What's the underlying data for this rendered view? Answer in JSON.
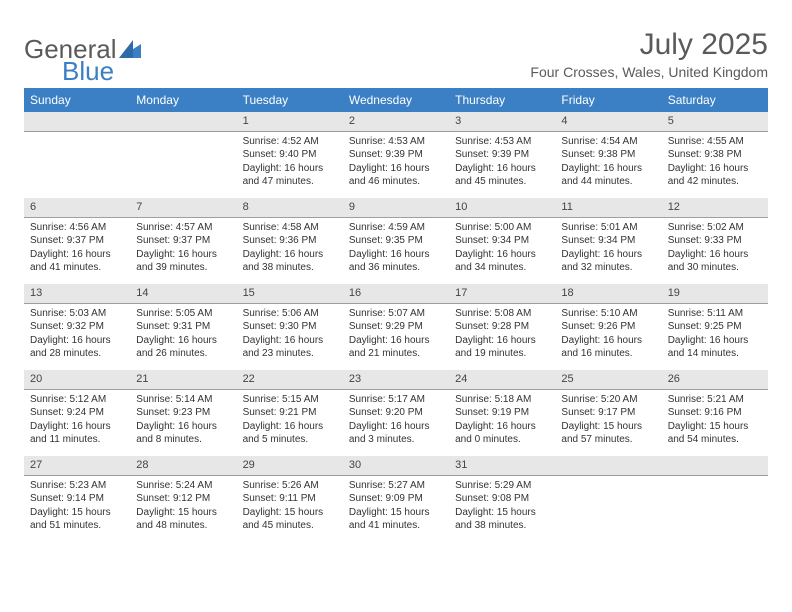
{
  "logo": {
    "text1": "General",
    "text2": "Blue"
  },
  "title": "July 2025",
  "location": "Four Crosses, Wales, United Kingdom",
  "colors": {
    "header_bg": "#3b7fc4",
    "header_text": "#ffffff",
    "daynum_bg": "#e7e7e7",
    "daynum_border": "#9aa0a6",
    "body_text": "#333333",
    "title_text": "#5a5a5a"
  },
  "weekdays": [
    "Sunday",
    "Monday",
    "Tuesday",
    "Wednesday",
    "Thursday",
    "Friday",
    "Saturday"
  ],
  "weeks": [
    [
      {
        "n": "",
        "sr": "",
        "ss": "",
        "dl": ""
      },
      {
        "n": "",
        "sr": "",
        "ss": "",
        "dl": ""
      },
      {
        "n": "1",
        "sr": "Sunrise: 4:52 AM",
        "ss": "Sunset: 9:40 PM",
        "dl": "Daylight: 16 hours and 47 minutes."
      },
      {
        "n": "2",
        "sr": "Sunrise: 4:53 AM",
        "ss": "Sunset: 9:39 PM",
        "dl": "Daylight: 16 hours and 46 minutes."
      },
      {
        "n": "3",
        "sr": "Sunrise: 4:53 AM",
        "ss": "Sunset: 9:39 PM",
        "dl": "Daylight: 16 hours and 45 minutes."
      },
      {
        "n": "4",
        "sr": "Sunrise: 4:54 AM",
        "ss": "Sunset: 9:38 PM",
        "dl": "Daylight: 16 hours and 44 minutes."
      },
      {
        "n": "5",
        "sr": "Sunrise: 4:55 AM",
        "ss": "Sunset: 9:38 PM",
        "dl": "Daylight: 16 hours and 42 minutes."
      }
    ],
    [
      {
        "n": "6",
        "sr": "Sunrise: 4:56 AM",
        "ss": "Sunset: 9:37 PM",
        "dl": "Daylight: 16 hours and 41 minutes."
      },
      {
        "n": "7",
        "sr": "Sunrise: 4:57 AM",
        "ss": "Sunset: 9:37 PM",
        "dl": "Daylight: 16 hours and 39 minutes."
      },
      {
        "n": "8",
        "sr": "Sunrise: 4:58 AM",
        "ss": "Sunset: 9:36 PM",
        "dl": "Daylight: 16 hours and 38 minutes."
      },
      {
        "n": "9",
        "sr": "Sunrise: 4:59 AM",
        "ss": "Sunset: 9:35 PM",
        "dl": "Daylight: 16 hours and 36 minutes."
      },
      {
        "n": "10",
        "sr": "Sunrise: 5:00 AM",
        "ss": "Sunset: 9:34 PM",
        "dl": "Daylight: 16 hours and 34 minutes."
      },
      {
        "n": "11",
        "sr": "Sunrise: 5:01 AM",
        "ss": "Sunset: 9:34 PM",
        "dl": "Daylight: 16 hours and 32 minutes."
      },
      {
        "n": "12",
        "sr": "Sunrise: 5:02 AM",
        "ss": "Sunset: 9:33 PM",
        "dl": "Daylight: 16 hours and 30 minutes."
      }
    ],
    [
      {
        "n": "13",
        "sr": "Sunrise: 5:03 AM",
        "ss": "Sunset: 9:32 PM",
        "dl": "Daylight: 16 hours and 28 minutes."
      },
      {
        "n": "14",
        "sr": "Sunrise: 5:05 AM",
        "ss": "Sunset: 9:31 PM",
        "dl": "Daylight: 16 hours and 26 minutes."
      },
      {
        "n": "15",
        "sr": "Sunrise: 5:06 AM",
        "ss": "Sunset: 9:30 PM",
        "dl": "Daylight: 16 hours and 23 minutes."
      },
      {
        "n": "16",
        "sr": "Sunrise: 5:07 AM",
        "ss": "Sunset: 9:29 PM",
        "dl": "Daylight: 16 hours and 21 minutes."
      },
      {
        "n": "17",
        "sr": "Sunrise: 5:08 AM",
        "ss": "Sunset: 9:28 PM",
        "dl": "Daylight: 16 hours and 19 minutes."
      },
      {
        "n": "18",
        "sr": "Sunrise: 5:10 AM",
        "ss": "Sunset: 9:26 PM",
        "dl": "Daylight: 16 hours and 16 minutes."
      },
      {
        "n": "19",
        "sr": "Sunrise: 5:11 AM",
        "ss": "Sunset: 9:25 PM",
        "dl": "Daylight: 16 hours and 14 minutes."
      }
    ],
    [
      {
        "n": "20",
        "sr": "Sunrise: 5:12 AM",
        "ss": "Sunset: 9:24 PM",
        "dl": "Daylight: 16 hours and 11 minutes."
      },
      {
        "n": "21",
        "sr": "Sunrise: 5:14 AM",
        "ss": "Sunset: 9:23 PM",
        "dl": "Daylight: 16 hours and 8 minutes."
      },
      {
        "n": "22",
        "sr": "Sunrise: 5:15 AM",
        "ss": "Sunset: 9:21 PM",
        "dl": "Daylight: 16 hours and 5 minutes."
      },
      {
        "n": "23",
        "sr": "Sunrise: 5:17 AM",
        "ss": "Sunset: 9:20 PM",
        "dl": "Daylight: 16 hours and 3 minutes."
      },
      {
        "n": "24",
        "sr": "Sunrise: 5:18 AM",
        "ss": "Sunset: 9:19 PM",
        "dl": "Daylight: 16 hours and 0 minutes."
      },
      {
        "n": "25",
        "sr": "Sunrise: 5:20 AM",
        "ss": "Sunset: 9:17 PM",
        "dl": "Daylight: 15 hours and 57 minutes."
      },
      {
        "n": "26",
        "sr": "Sunrise: 5:21 AM",
        "ss": "Sunset: 9:16 PM",
        "dl": "Daylight: 15 hours and 54 minutes."
      }
    ],
    [
      {
        "n": "27",
        "sr": "Sunrise: 5:23 AM",
        "ss": "Sunset: 9:14 PM",
        "dl": "Daylight: 15 hours and 51 minutes."
      },
      {
        "n": "28",
        "sr": "Sunrise: 5:24 AM",
        "ss": "Sunset: 9:12 PM",
        "dl": "Daylight: 15 hours and 48 minutes."
      },
      {
        "n": "29",
        "sr": "Sunrise: 5:26 AM",
        "ss": "Sunset: 9:11 PM",
        "dl": "Daylight: 15 hours and 45 minutes."
      },
      {
        "n": "30",
        "sr": "Sunrise: 5:27 AM",
        "ss": "Sunset: 9:09 PM",
        "dl": "Daylight: 15 hours and 41 minutes."
      },
      {
        "n": "31",
        "sr": "Sunrise: 5:29 AM",
        "ss": "Sunset: 9:08 PM",
        "dl": "Daylight: 15 hours and 38 minutes."
      },
      {
        "n": "",
        "sr": "",
        "ss": "",
        "dl": ""
      },
      {
        "n": "",
        "sr": "",
        "ss": "",
        "dl": ""
      }
    ]
  ]
}
